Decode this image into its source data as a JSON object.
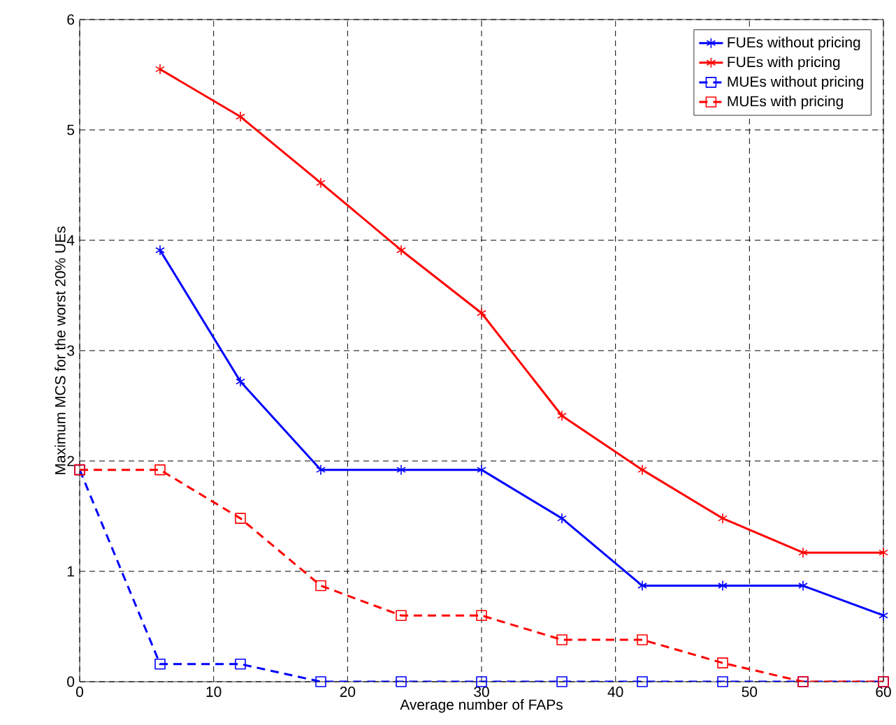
{
  "chart_data": {
    "type": "line",
    "xlabel": "Average number of FAPs",
    "ylabel": "Maximum MCS for the worst 20% UEs",
    "xlim": [
      0,
      60
    ],
    "ylim": [
      0,
      6
    ],
    "xticks": [
      0,
      10,
      20,
      30,
      40,
      50,
      60
    ],
    "yticks": [
      0,
      1,
      2,
      3,
      4,
      5,
      6
    ],
    "grid": true,
    "legend": "top right",
    "x": [
      0,
      6,
      12,
      18,
      24,
      30,
      36,
      42,
      48,
      54,
      60
    ],
    "series": [
      {
        "name": "FUEs without pricing",
        "color": "#0000ff",
        "marker": "cross",
        "line_style": "solid",
        "values": [
          null,
          3.91,
          2.72,
          1.92,
          1.92,
          1.92,
          1.48,
          0.87,
          0.87,
          0.87,
          0.6
        ]
      },
      {
        "name": "FUEs with pricing",
        "color": "#ff0000",
        "marker": "cross",
        "line_style": "solid",
        "values": [
          null,
          5.55,
          5.12,
          4.52,
          3.91,
          3.34,
          2.41,
          1.92,
          1.48,
          1.17,
          1.17
        ]
      },
      {
        "name": "MUEs without pricing",
        "color": "#0000ff",
        "marker": "square",
        "line_style": "dashed",
        "values": [
          1.92,
          0.16,
          0.16,
          0,
          0,
          0,
          0,
          0,
          0,
          0,
          0
        ]
      },
      {
        "name": "MUEs with pricing",
        "color": "#ff0000",
        "marker": "square",
        "line_style": "dashed",
        "values": [
          1.92,
          1.92,
          1.48,
          0.87,
          0.6,
          0.6,
          0.38,
          0.38,
          0.17,
          0,
          0
        ]
      }
    ]
  }
}
